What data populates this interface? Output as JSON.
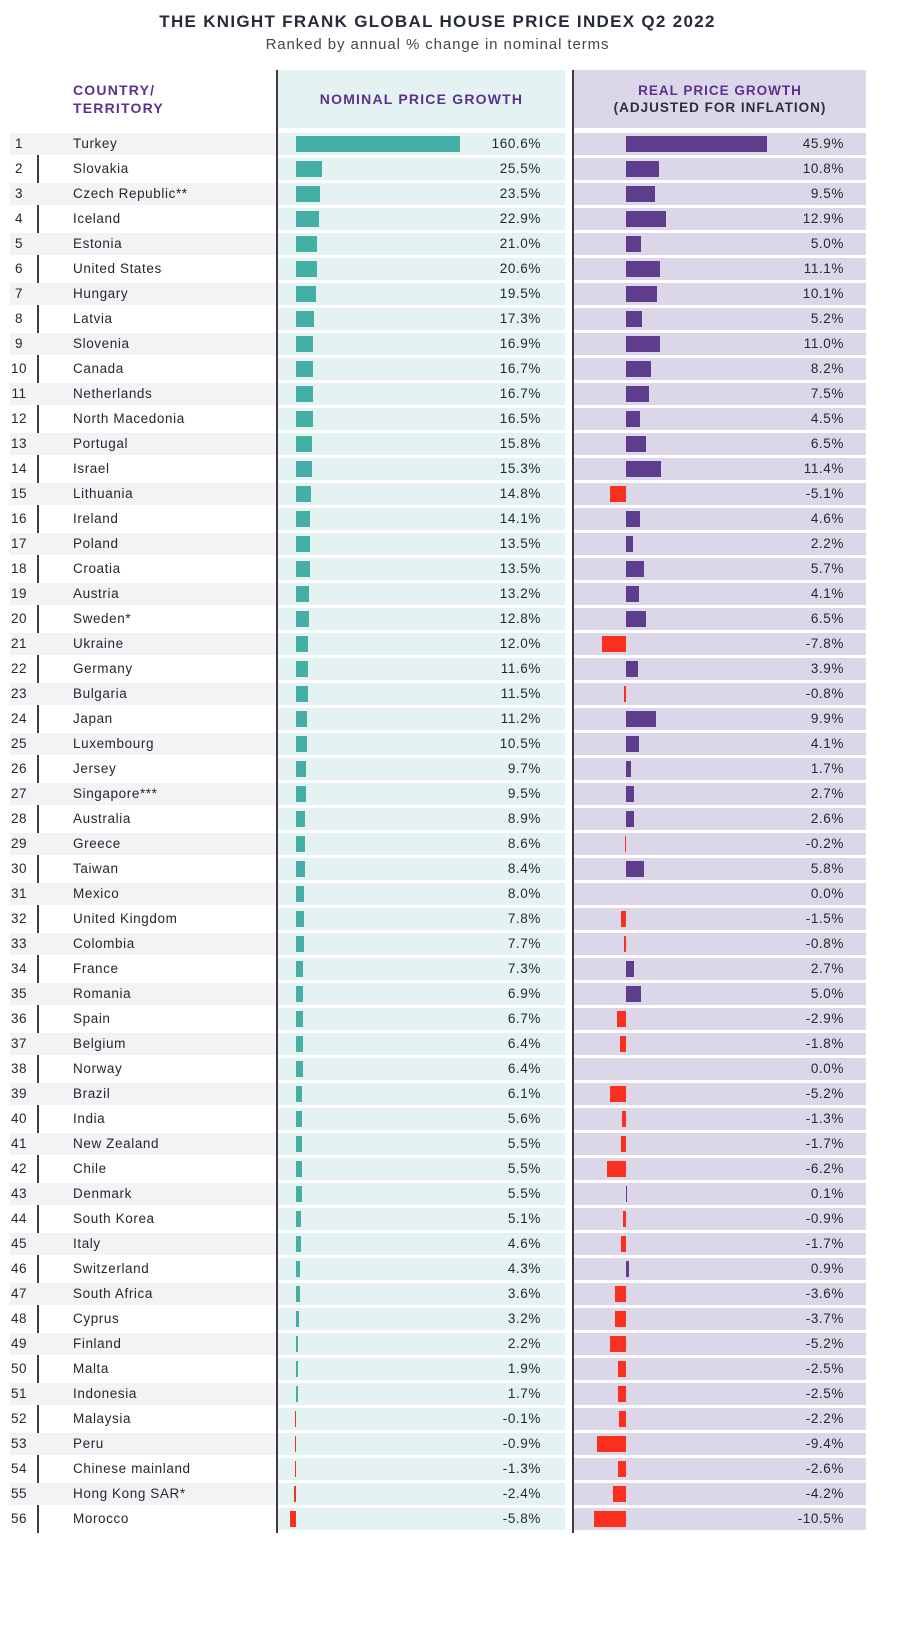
{
  "title": "THE KNIGHT FRANK GLOBAL HOUSE PRICE INDEX Q2 2022",
  "subtitle": "Ranked by annual % change in nominal terms",
  "header": {
    "country": [
      "COUNTRY/",
      "TERRITORY"
    ],
    "nominal": "NOMINAL PRICE GROWTH",
    "real": [
      "REAL PRICE GROWTH",
      "(ADJUSTED FOR INFLATION)"
    ]
  },
  "colors": {
    "nominal_positive": "#44b0a5",
    "real_positive": "#5f3d8d",
    "negative": "#f9301d",
    "nominal_column_bg": "#e4f3f1",
    "real_column_bg": "#dcd7e8",
    "row_stripe": "#f3f3f5",
    "header_text": "#5b3190",
    "divider_line": "#3c3c42"
  },
  "chart_data": {
    "type": "bar",
    "orientation": "horizontal",
    "title": "THE KNIGHT FRANK GLOBAL HOUSE PRICE INDEX Q2 2022",
    "subtitle": "Ranked by annual % change in nominal terms",
    "value_suffix": "%",
    "ranks": [
      1,
      2,
      3,
      4,
      5,
      6,
      7,
      8,
      9,
      10,
      11,
      12,
      13,
      14,
      15,
      16,
      17,
      18,
      19,
      20,
      21,
      22,
      23,
      24,
      25,
      26,
      27,
      28,
      29,
      30,
      31,
      32,
      33,
      34,
      35,
      36,
      37,
      38,
      39,
      40,
      41,
      42,
      43,
      44,
      45,
      46,
      47,
      48,
      49,
      50,
      51,
      52,
      53,
      54,
      55,
      56
    ],
    "categories": [
      "Turkey",
      "Slovakia",
      "Czech Republic**",
      "Iceland",
      "Estonia",
      "United States",
      "Hungary",
      "Latvia",
      "Slovenia",
      "Canada",
      "Netherlands",
      "North Macedonia",
      "Portugal",
      "Israel",
      "Lithuania",
      "Ireland",
      "Poland",
      "Croatia",
      "Austria",
      "Sweden*",
      "Ukraine",
      "Germany",
      "Bulgaria",
      "Japan",
      "Luxembourg",
      "Jersey",
      "Singapore***",
      "Australia",
      "Greece",
      "Taiwan",
      "Mexico",
      "United Kingdom",
      "Colombia",
      "France",
      "Romania",
      "Spain",
      "Belgium",
      "Norway",
      "Brazil",
      "India",
      "New Zealand",
      "Chile",
      "Denmark",
      "South Korea",
      "Italy",
      "Switzerland",
      "South Africa",
      "Cyprus",
      "Finland",
      "Malta",
      "Indonesia",
      "Malaysia",
      "Peru",
      "Chinese mainland",
      "Hong Kong SAR*",
      "Morocco"
    ],
    "series": [
      {
        "name": "Nominal price growth (%)",
        "values": [
          160.6,
          25.5,
          23.5,
          22.9,
          21.0,
          20.6,
          19.5,
          17.3,
          16.9,
          16.7,
          16.7,
          16.5,
          15.8,
          15.3,
          14.8,
          14.1,
          13.5,
          13.5,
          13.2,
          12.8,
          12.0,
          11.6,
          11.5,
          11.2,
          10.5,
          9.7,
          9.5,
          8.9,
          8.6,
          8.4,
          8.0,
          7.8,
          7.7,
          7.3,
          6.9,
          6.7,
          6.4,
          6.4,
          6.1,
          5.6,
          5.5,
          5.5,
          5.5,
          5.1,
          4.6,
          4.3,
          3.6,
          3.2,
          2.2,
          1.9,
          1.7,
          -0.1,
          -0.9,
          -1.3,
          -2.4,
          -5.8
        ]
      },
      {
        "name": "Real price growth adjusted for inflation (%)",
        "values": [
          45.9,
          10.8,
          9.5,
          12.9,
          5.0,
          11.1,
          10.1,
          5.2,
          11.0,
          8.2,
          7.5,
          4.5,
          6.5,
          11.4,
          -5.1,
          4.6,
          2.2,
          5.7,
          4.1,
          6.5,
          -7.8,
          3.9,
          -0.8,
          9.9,
          4.1,
          1.7,
          2.7,
          2.6,
          -0.2,
          5.8,
          0.0,
          -1.5,
          -0.8,
          2.7,
          5.0,
          -2.9,
          -1.8,
          0.0,
          -5.2,
          -1.3,
          -1.7,
          -6.2,
          0.1,
          -0.9,
          -1.7,
          0.9,
          -3.6,
          -3.7,
          -5.2,
          -2.5,
          -2.5,
          -2.2,
          -9.4,
          -2.6,
          -4.2,
          -10.5
        ]
      }
    ]
  }
}
